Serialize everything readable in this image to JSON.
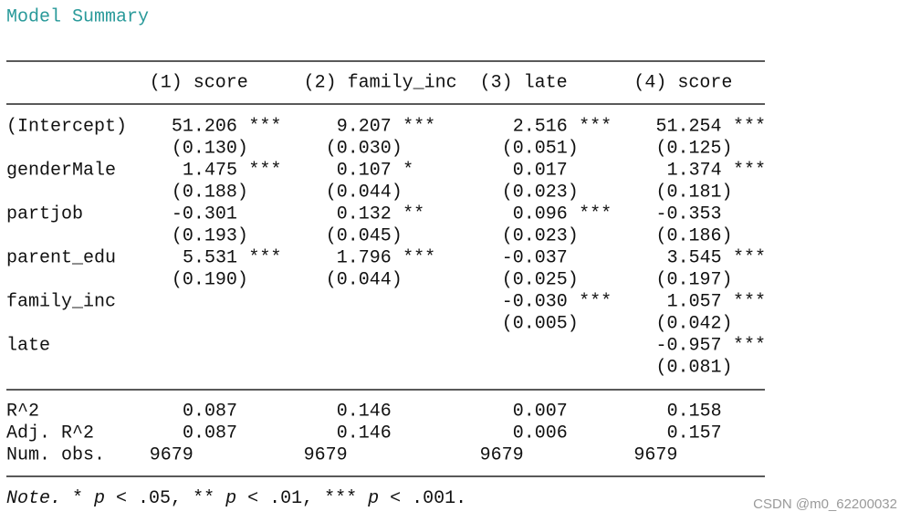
{
  "title": "Model Summary",
  "columns": [
    "(1) score",
    "(2) family_inc",
    "(3) late",
    "(4) score"
  ],
  "rows": [
    {
      "label": "(Intercept)",
      "cells": [
        {
          "coef": "51.206",
          "stars": "***",
          "se": "(0.130)"
        },
        {
          "coef": "9.207",
          "stars": "***",
          "se": "(0.030)"
        },
        {
          "coef": "2.516",
          "stars": "***",
          "se": "(0.051)"
        },
        {
          "coef": "51.254",
          "stars": "***",
          "se": "(0.125)"
        }
      ]
    },
    {
      "label": "genderMale",
      "cells": [
        {
          "coef": "1.475",
          "stars": "***",
          "se": "(0.188)"
        },
        {
          "coef": "0.107",
          "stars": "*",
          "se": "(0.044)"
        },
        {
          "coef": "0.017",
          "se": "(0.023)"
        },
        {
          "coef": "1.374",
          "stars": "***",
          "se": "(0.181)"
        }
      ]
    },
    {
      "label": "partjob",
      "cells": [
        {
          "coef": "-0.301",
          "se": "(0.193)"
        },
        {
          "coef": "0.132",
          "stars": "**",
          "se": "(0.045)"
        },
        {
          "coef": "0.096",
          "stars": "***",
          "se": "(0.023)"
        },
        {
          "coef": "-0.353",
          "se": "(0.186)"
        }
      ]
    },
    {
      "label": "parent_edu",
      "cells": [
        {
          "coef": "5.531",
          "stars": "***",
          "se": "(0.190)"
        },
        {
          "coef": "1.796",
          "stars": "***",
          "se": "(0.044)"
        },
        {
          "coef": "-0.037",
          "se": "(0.025)"
        },
        {
          "coef": "3.545",
          "stars": "***",
          "se": "(0.197)"
        }
      ]
    },
    {
      "label": "family_inc",
      "cells": [
        null,
        null,
        {
          "coef": "-0.030",
          "stars": "***",
          "se": "(0.005)"
        },
        {
          "coef": "1.057",
          "stars": "***",
          "se": "(0.042)"
        }
      ]
    },
    {
      "label": "late",
      "cells": [
        null,
        null,
        null,
        {
          "coef": "-0.957",
          "stars": "***",
          "se": "(0.081)"
        }
      ]
    }
  ],
  "stats": [
    {
      "label": "R^2",
      "values": [
        "0.087",
        "0.146",
        "0.007",
        "0.158"
      ]
    },
    {
      "label": "Adj. R^2",
      "values": [
        "0.087",
        "0.146",
        "0.006",
        "0.157"
      ]
    },
    {
      "label": "Num. obs.",
      "values": [
        "9679",
        "9679",
        "9679",
        "9679"
      ]
    }
  ],
  "note": {
    "label": "Note.",
    "parts": [
      " * ",
      "p",
      " < .05, ** ",
      "p",
      " < .01, *** ",
      "p",
      " < .001."
    ]
  },
  "watermark": "CSDN @m0_62200032"
}
